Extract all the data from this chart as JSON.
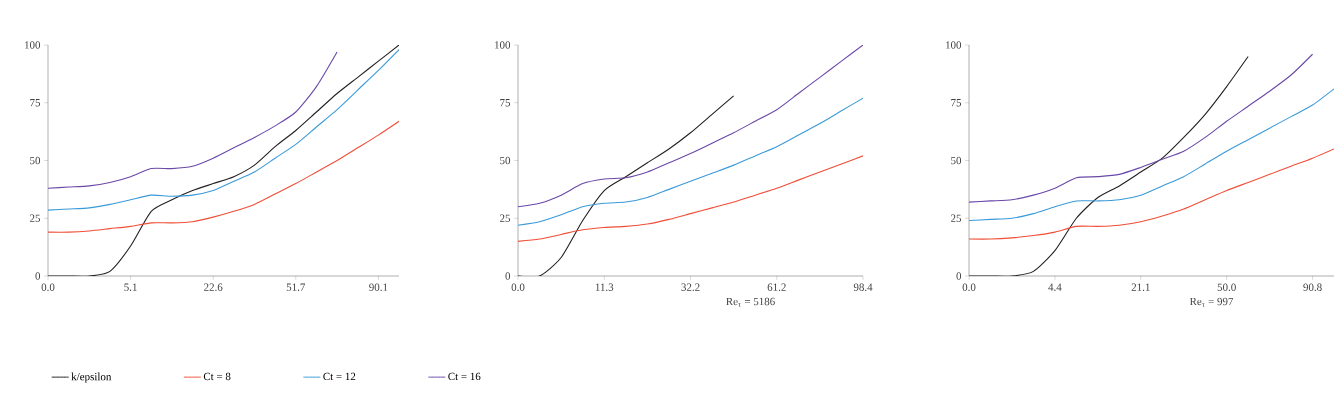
{
  "chart_data": [
    {
      "type": "line",
      "ylim": [
        0,
        100
      ],
      "categories": [
        "0.0",
        null,
        null,
        null,
        "5.1",
        null,
        null,
        null,
        "22.6",
        null,
        null,
        null,
        "51.7",
        null,
        null,
        null,
        "90.1",
        null
      ],
      "yticks": [
        0,
        25,
        50,
        75,
        100
      ],
      "legend": "bottom",
      "line_style": "solid",
      "marker": "none",
      "series": [
        {
          "name": "k/epsilon",
          "color": "#231f20",
          "values": [
            0,
            0,
            0,
            2,
            13,
            28,
            33,
            37,
            40,
            43,
            48,
            56,
            63,
            71,
            79,
            86,
            93,
            100
          ]
        },
        {
          "name": "Ct = 8",
          "color": "#f04e37",
          "values": [
            19,
            19,
            19.5,
            20.5,
            21.5,
            23,
            23,
            23.5,
            25.5,
            28,
            31,
            35.5,
            40,
            45,
            50,
            55.5,
            61,
            67
          ]
        },
        {
          "name": "Ct = 12",
          "color": "#3a9ad9",
          "values": [
            28.5,
            29,
            29.5,
            31,
            33,
            35,
            34.5,
            35,
            37,
            41,
            45,
            51,
            57,
            64.5,
            72,
            80.5,
            89,
            98
          ]
        },
        {
          "name": "Ct = 16",
          "color": "#6a48a8",
          "values": [
            38,
            38.5,
            39,
            40.5,
            43,
            46.5,
            46.5,
            47.5,
            51,
            55.5,
            60,
            65,
            71,
            82,
            97,
            null,
            null,
            null
          ]
        }
      ]
    },
    {
      "type": "line",
      "xlabel": "Re$_{τ}$ = 5186",
      "ylim": [
        0,
        100
      ],
      "categories": [
        "0.0",
        null,
        null,
        null,
        "11.3",
        null,
        null,
        null,
        "32.2",
        null,
        null,
        null,
        "61.2",
        null,
        null,
        null,
        "98.4"
      ],
      "yticks": [
        0,
        25,
        50,
        75,
        100
      ],
      "line_style": "solid",
      "marker": "none",
      "series": [
        {
          "color": "#231f20",
          "values": [
            0,
            0,
            8,
            24,
            37,
            43,
            49,
            55,
            62,
            70,
            78,
            null,
            null,
            null,
            null,
            null,
            null
          ]
        },
        {
          "color": "#f04e37",
          "values": [
            15,
            16,
            18,
            20,
            21,
            21.5,
            22.5,
            24.5,
            27,
            29.5,
            32,
            35,
            38,
            41.5,
            45,
            48.5,
            52
          ]
        },
        {
          "color": "#3a9ad9",
          "values": [
            22,
            23.5,
            26.5,
            30,
            31.5,
            32,
            34,
            37.5,
            41,
            44.5,
            48,
            52,
            56,
            61,
            66,
            71.5,
            77
          ]
        },
        {
          "color": "#6a48a8",
          "values": [
            30,
            31.5,
            35,
            40,
            42,
            42.5,
            45,
            49,
            53,
            57.5,
            62,
            67,
            72,
            79,
            86,
            93,
            100
          ]
        }
      ]
    },
    {
      "type": "line",
      "xlabel": "Re$_{τ}$ = 997",
      "ylim": [
        0,
        100
      ],
      "categories": [
        "0.0",
        null,
        null,
        null,
        "4.4",
        null,
        null,
        null,
        "21.1",
        null,
        null,
        null,
        "50.0",
        null,
        null,
        null,
        "90.8",
        null
      ],
      "yticks": [
        0,
        25,
        50,
        75,
        100
      ],
      "line_style": "solid",
      "marker": "none",
      "series": [
        {
          "color": "#231f20",
          "values": [
            0,
            0,
            0,
            2,
            11,
            25,
            34,
            39,
            45,
            51,
            60,
            70,
            82,
            95,
            null,
            null,
            null,
            null
          ]
        },
        {
          "color": "#f04e37",
          "values": [
            16,
            16,
            16.5,
            17.5,
            19,
            21.5,
            21.5,
            22,
            23.5,
            26,
            29,
            33,
            37,
            40.5,
            44,
            47.5,
            51,
            55
          ]
        },
        {
          "color": "#3a9ad9",
          "values": [
            24,
            24.5,
            25,
            27,
            30,
            32.5,
            32.5,
            33,
            35,
            39,
            43,
            48.5,
            54,
            59,
            64,
            69,
            74,
            81
          ]
        },
        {
          "color": "#6a48a8",
          "values": [
            32,
            32.5,
            33,
            35,
            38,
            42.5,
            43,
            44,
            47,
            50.5,
            54,
            60,
            67,
            73.5,
            80,
            87,
            96,
            null
          ]
        }
      ]
    }
  ]
}
